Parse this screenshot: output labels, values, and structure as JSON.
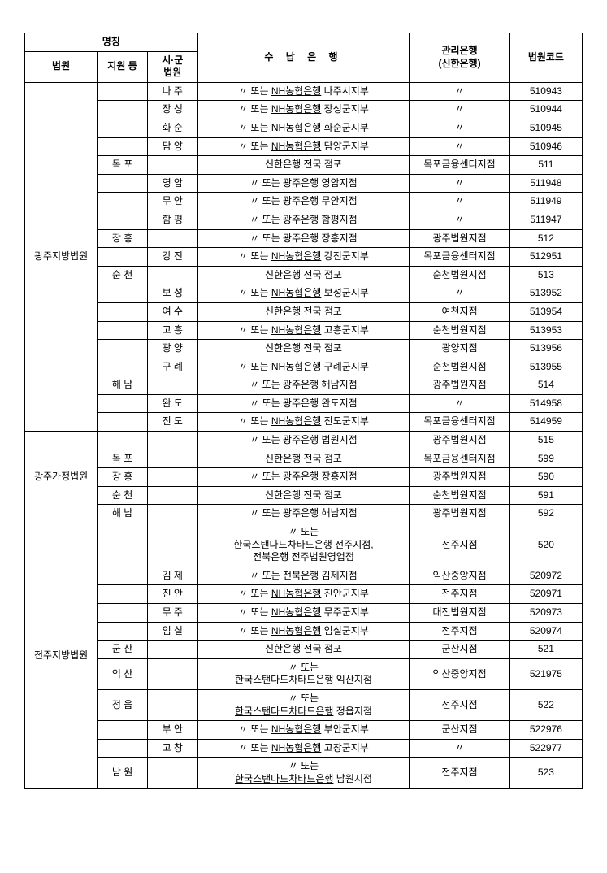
{
  "headers": {
    "name_group": "명칭",
    "court": "법원",
    "branch": "지원 등",
    "city_court": "시·군\n법원",
    "bank": "수 납 은 행",
    "mgmt_bank": "관리은행\n(신한은행)",
    "court_code": "법원코드"
  },
  "ditto": "〃",
  "or": "또는",
  "nh": "NH농협은행",
  "gj": "광주은행",
  "sh_all": "신한은행 전국 점포",
  "scb": "한국스탠다드차타드은행",
  "jb": "전북은행",
  "courts": {
    "gwangju_district": "광주지방법원",
    "gwangju_family": "광주가정법원",
    "jeonju_district": "전주지방법원"
  },
  "rows": [
    {
      "city": "나 주",
      "bank_suffix": "나주시지부",
      "mgmt": "〃",
      "code": "510943",
      "type": "nh"
    },
    {
      "city": "장 성",
      "bank_suffix": "장성군지부",
      "mgmt": "〃",
      "code": "510944",
      "type": "nh"
    },
    {
      "city": "화 순",
      "bank_suffix": "화순군지부",
      "mgmt": "〃",
      "code": "510945",
      "type": "nh"
    },
    {
      "city": "담 양",
      "bank_suffix": "담양군지부",
      "mgmt": "〃",
      "code": "510946",
      "type": "nh"
    },
    {
      "branch": "목 포",
      "bank_full": "신한은행 전국 점포",
      "mgmt": "목포금융센터지점",
      "code": "511"
    },
    {
      "city": "영 암",
      "bank_suffix": "영암지점",
      "mgmt": "〃",
      "code": "511948",
      "type": "gj"
    },
    {
      "city": "무 안",
      "bank_suffix": "무안지점",
      "mgmt": "〃",
      "code": "511949",
      "type": "gj"
    },
    {
      "city": "함 평",
      "bank_suffix": "함평지점",
      "mgmt": "〃",
      "code": "511947",
      "type": "gj"
    },
    {
      "branch": "장 흥",
      "bank_suffix": "장흥지점",
      "mgmt": "광주법원지점",
      "code": "512",
      "type": "gj"
    },
    {
      "city": "강 진",
      "bank_suffix": "강진군지부",
      "mgmt": "목포금융센터지점",
      "code": "512951",
      "type": "nh"
    },
    {
      "branch": "순 천",
      "bank_full": "신한은행 전국 점포",
      "mgmt": "순천법원지점",
      "code": "513"
    },
    {
      "city": "보 성",
      "bank_suffix": "보성군지부",
      "mgmt": "〃",
      "code": "513952",
      "type": "nh"
    },
    {
      "city": "여 수",
      "bank_full": "신한은행 전국 점포",
      "mgmt": "여천지점",
      "code": "513954"
    },
    {
      "city": "고 흥",
      "bank_suffix": "고흥군지부",
      "mgmt": "순천법원지점",
      "code": "513953",
      "type": "nh"
    },
    {
      "city": "광 양",
      "bank_full": "신한은행 전국 점포",
      "mgmt": "광양지점",
      "code": "513956"
    },
    {
      "city": "구 례",
      "bank_suffix": "구례군지부",
      "mgmt": "순천법원지점",
      "code": "513955",
      "type": "nh"
    },
    {
      "branch": "해 남",
      "bank_suffix": "해남지점",
      "mgmt": "광주법원지점",
      "code": "514",
      "type": "gj"
    },
    {
      "city": "완 도",
      "bank_suffix": "완도지점",
      "mgmt": "〃",
      "code": "514958",
      "type": "gj"
    },
    {
      "city": "진 도",
      "bank_suffix": "진도군지부",
      "mgmt": "목포금융센터지점",
      "code": "514959",
      "type": "nh"
    },
    {
      "bank_suffix": "법원지점",
      "mgmt": "광주법원지점",
      "code": "515",
      "type": "gj"
    },
    {
      "branch": "목 포",
      "bank_full": "신한은행 전국 점포",
      "mgmt": "목포금융센터지점",
      "code": "599"
    },
    {
      "branch": "장 흥",
      "bank_suffix": "장흥지점",
      "mgmt": "광주법원지점",
      "code": "590",
      "type": "gj"
    },
    {
      "branch": "순 천",
      "bank_full": "신한은행 전국 점포",
      "mgmt": "순천법원지점",
      "code": "591"
    },
    {
      "branch": "해 남",
      "bank_suffix": "해남지점",
      "mgmt": "광주법원지점",
      "code": "592",
      "type": "gj"
    },
    {
      "bank_multi": "〃 또는\n한국스탠다드차타드은행 전주지점,\n전북은행 전주법원영업점",
      "mgmt": "전주지점",
      "code": "520"
    },
    {
      "city": "김 제",
      "bank_suffix": "김제지점",
      "mgmt": "익산중앙지점",
      "code": "520972",
      "type": "jb"
    },
    {
      "city": "진 안",
      "bank_suffix": "진안군지부",
      "mgmt": "전주지점",
      "code": "520971",
      "type": "nh"
    },
    {
      "city": "무 주",
      "bank_suffix": "무주군지부",
      "mgmt": "대전법원지점",
      "code": "520973",
      "type": "nh"
    },
    {
      "city": "임 실",
      "bank_suffix": "임실군지부",
      "mgmt": "전주지점",
      "code": "520974",
      "type": "nh"
    },
    {
      "branch": "군 산",
      "bank_full": "신한은행 전국 점포",
      "mgmt": "군산지점",
      "code": "521"
    },
    {
      "branch": "익 산",
      "bank_multi": "〃 또는\n한국스탠다드차타드은행 익산지점",
      "mgmt": "익산중앙지점",
      "code": "521975"
    },
    {
      "branch": "정 읍",
      "bank_multi": "〃 또는\n한국스탠다드차타드은행 정읍지점",
      "mgmt": "전주지점",
      "code": "522"
    },
    {
      "city": "부 안",
      "bank_suffix": "부안군지부",
      "mgmt": "군산지점",
      "code": "522976",
      "type": "nh"
    },
    {
      "city": "고 창",
      "bank_suffix": "고창군지부",
      "mgmt": "〃",
      "code": "522977",
      "type": "nh"
    },
    {
      "branch": "남 원",
      "bank_multi": "〃 또는\n한국스탠다드차타드은행 남원지점",
      "mgmt": "전주지점",
      "code": "523"
    }
  ]
}
